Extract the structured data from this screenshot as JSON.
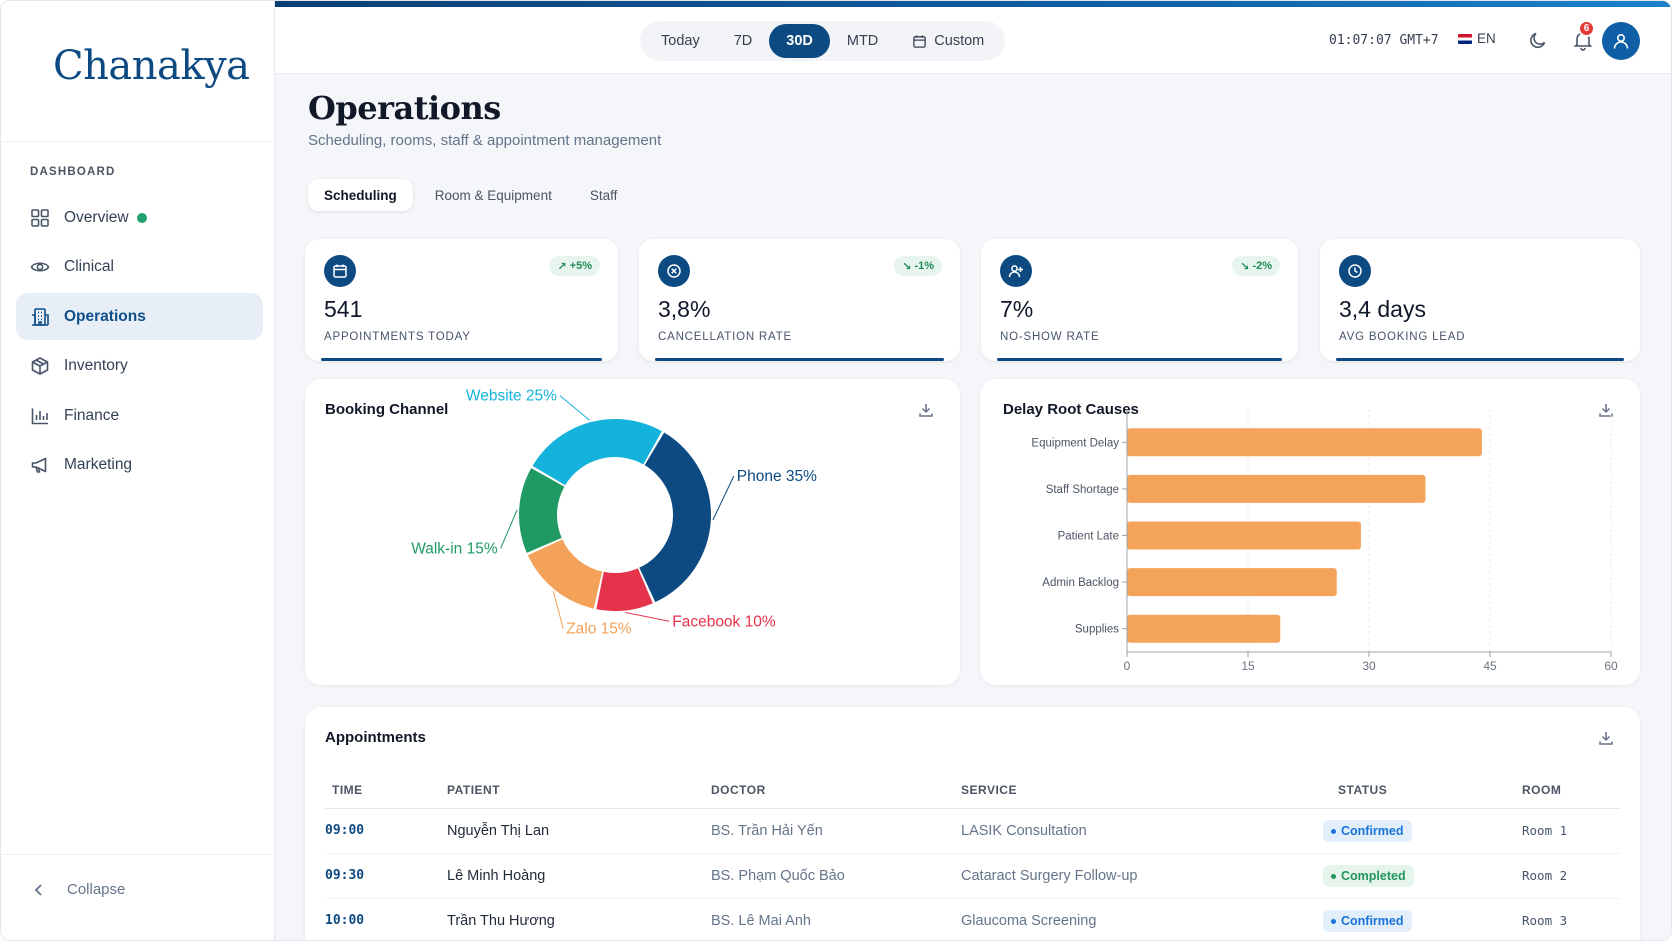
{
  "sidebar": {
    "logo": "Chanakya",
    "section_heading": "DASHBOARD",
    "items": [
      {
        "label": "Overview"
      },
      {
        "label": "Clinical"
      },
      {
        "label": "Operations"
      },
      {
        "label": "Inventory"
      },
      {
        "label": "Finance"
      },
      {
        "label": "Marketing"
      }
    ],
    "active_item": "Operations",
    "collapse_label": "Collapse"
  },
  "topbar": {
    "ranges": [
      "Today",
      "7D",
      "30D",
      "MTD",
      "Custom"
    ],
    "active_range": "30D",
    "clock": "01:07:07 GMT+7",
    "language": "EN",
    "notification_count": "6",
    "accent_color": "#0d4a82"
  },
  "page": {
    "title": "Operations",
    "subtitle": "Scheduling, rooms, staff & appointment management",
    "tabs": [
      "Scheduling",
      "Room & Equipment",
      "Staff"
    ],
    "active_tab": "Scheduling"
  },
  "kpis": [
    {
      "icon": "calendar-icon",
      "value": "541",
      "label": "APPOINTMENTS TODAY",
      "trend": "+5%"
    },
    {
      "icon": "x-circle-icon",
      "value": "3,8%",
      "label": "CANCELLATION RATE",
      "trend": "-1%"
    },
    {
      "icon": "user-plus-icon",
      "value": "7%",
      "label": "NO-SHOW RATE",
      "trend": "-2%"
    },
    {
      "icon": "clock-icon",
      "value": "3,4 days",
      "label": "AVG BOOKING LEAD",
      "trend": ""
    }
  ],
  "booking_channel": {
    "title": "Booking Channel"
  },
  "delay_causes": {
    "title": "Delay Root Causes"
  },
  "chart_data": [
    {
      "type": "pie",
      "title": "Booking Channel",
      "categories": [
        "Phone",
        "Facebook",
        "Zalo",
        "Walk-in",
        "Website"
      ],
      "values": [
        35,
        10,
        15,
        15,
        25
      ],
      "labels": [
        "Phone 35%",
        "Facebook 10%",
        "Zalo 15%",
        "Walk-in 15%",
        "Website 25%"
      ],
      "colors": [
        "#0d4a82",
        "#e5334b",
        "#f4a259",
        "#1f9a62",
        "#14b3dc"
      ],
      "donut": true
    },
    {
      "type": "bar",
      "orientation": "horizontal",
      "title": "Delay Root Causes",
      "categories": [
        "Equipment Delay",
        "Staff Shortage",
        "Patient Late",
        "Admin Backlog",
        "Supplies"
      ],
      "values": [
        44,
        37,
        29,
        26,
        19
      ],
      "xlim": [
        0,
        60
      ],
      "xticks": [
        0,
        15,
        30,
        45,
        60
      ],
      "color": "#f4a45a",
      "grid": true
    }
  ],
  "appointments": {
    "title": "Appointments",
    "columns": [
      "TIME",
      "PATIENT",
      "DOCTOR",
      "SERVICE",
      "STATUS",
      "ROOM"
    ],
    "rows": [
      {
        "time": "09:00",
        "patient": "Nguyễn Thị Lan",
        "doctor": "BS. Trần Hải Yến",
        "service": "LASIK Consultation",
        "status": "Confirmed",
        "room": "Room 1"
      },
      {
        "time": "09:30",
        "patient": "Lê Minh Hoàng",
        "doctor": "BS. Phạm Quốc Bảo",
        "service": "Cataract Surgery Follow-up",
        "status": "Completed",
        "room": "Room 2"
      },
      {
        "time": "10:00",
        "patient": "Trần Thu Hương",
        "doctor": "BS. Lê Mai Anh",
        "service": "Glaucoma Screening",
        "status": "Confirmed",
        "room": "Room 3"
      }
    ]
  }
}
